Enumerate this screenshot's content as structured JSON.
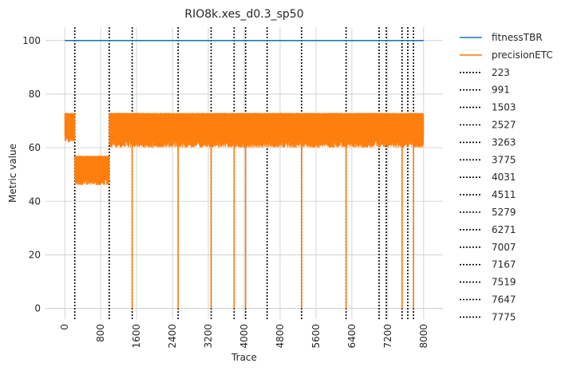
{
  "chart_data": {
    "type": "line",
    "title": "RIO8k.xes_d0.3_sp50",
    "xlabel": "Trace",
    "ylabel": "Metric value",
    "xlim": [
      -430,
      8430
    ],
    "ylim": [
      -4,
      105
    ],
    "x_ticks": [
      0,
      800,
      1600,
      2400,
      3200,
      4000,
      4800,
      5600,
      6400,
      7200,
      8000
    ],
    "x_tick_labels": [
      "0",
      "800",
      "1600",
      "2400",
      "3200",
      "4000",
      "4800",
      "5600",
      "6400",
      "7200",
      "8000"
    ],
    "y_ticks": [
      0,
      20,
      40,
      60,
      80,
      100
    ],
    "y_tick_labels": [
      "0",
      "20",
      "40",
      "60",
      "80",
      "100"
    ],
    "grid": true,
    "legend_placement": "outside-right",
    "series": [
      {
        "name": "fitnessTBR",
        "color": "#1f77b4",
        "style": "line",
        "x": [
          0,
          8000
        ],
        "y": [
          100,
          100
        ]
      },
      {
        "name": "precisionETC",
        "color": "#ff7f0e",
        "style": "noisy-band",
        "segments": [
          {
            "x": [
              0,
              223
            ],
            "low": 62,
            "high": 73
          },
          {
            "x": [
              223,
              991
            ],
            "low": 46,
            "high": 57
          },
          {
            "x": [
              991,
              8000
            ],
            "low": 60,
            "high": 73
          }
        ],
        "drops_to_zero_at": [
          1503,
          2527,
          3263,
          3775,
          4031,
          5279,
          6271,
          7519,
          7775
        ]
      }
    ],
    "vlines": {
      "style": "dotted",
      "color": "#000000",
      "values": [
        "223",
        "991",
        "1503",
        "2527",
        "3263",
        "3775",
        "4031",
        "4511",
        "5279",
        "6271",
        "7007",
        "7167",
        "7519",
        "7647",
        "7775"
      ]
    }
  }
}
